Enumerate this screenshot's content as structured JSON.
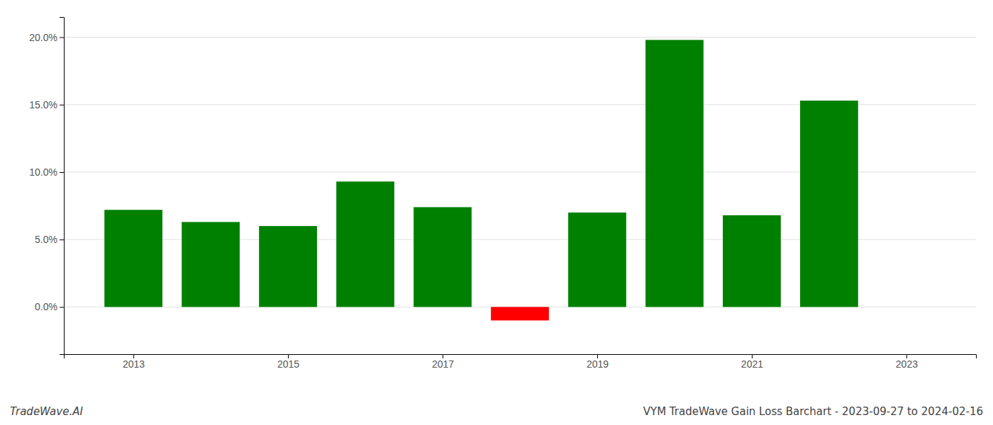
{
  "chart_data": {
    "type": "bar",
    "title": "VYM TradeWave Gain Loss Barchart - 2023-09-27 to 2024-02-16",
    "annotations": [
      "TradeWave.AI"
    ],
    "x": [
      2013,
      2014,
      2015,
      2016,
      2017,
      2018,
      2019,
      2020,
      2021,
      2022
    ],
    "values": [
      0.072,
      0.063,
      0.06,
      0.093,
      0.074,
      -0.01,
      0.07,
      0.198,
      0.068,
      0.153
    ],
    "colors": [
      "#008000",
      "#008000",
      "#008000",
      "#008000",
      "#008000",
      "#ff0000",
      "#008000",
      "#008000",
      "#008000",
      "#008000"
    ],
    "xlim": [
      2012.1,
      2023.9
    ],
    "xticks": [
      2013,
      2015,
      2017,
      2019,
      2021,
      2023
    ],
    "ylim": [
      -0.035,
      0.215
    ],
    "yticks": [
      {
        "value": 0.0,
        "label": "0.0%"
      },
      {
        "value": 0.05,
        "label": "5.0%"
      },
      {
        "value": 0.1,
        "label": "10.0%"
      },
      {
        "value": 0.15,
        "label": "15.0%"
      },
      {
        "value": 0.2,
        "label": "20.0%"
      }
    ],
    "grid": true
  }
}
